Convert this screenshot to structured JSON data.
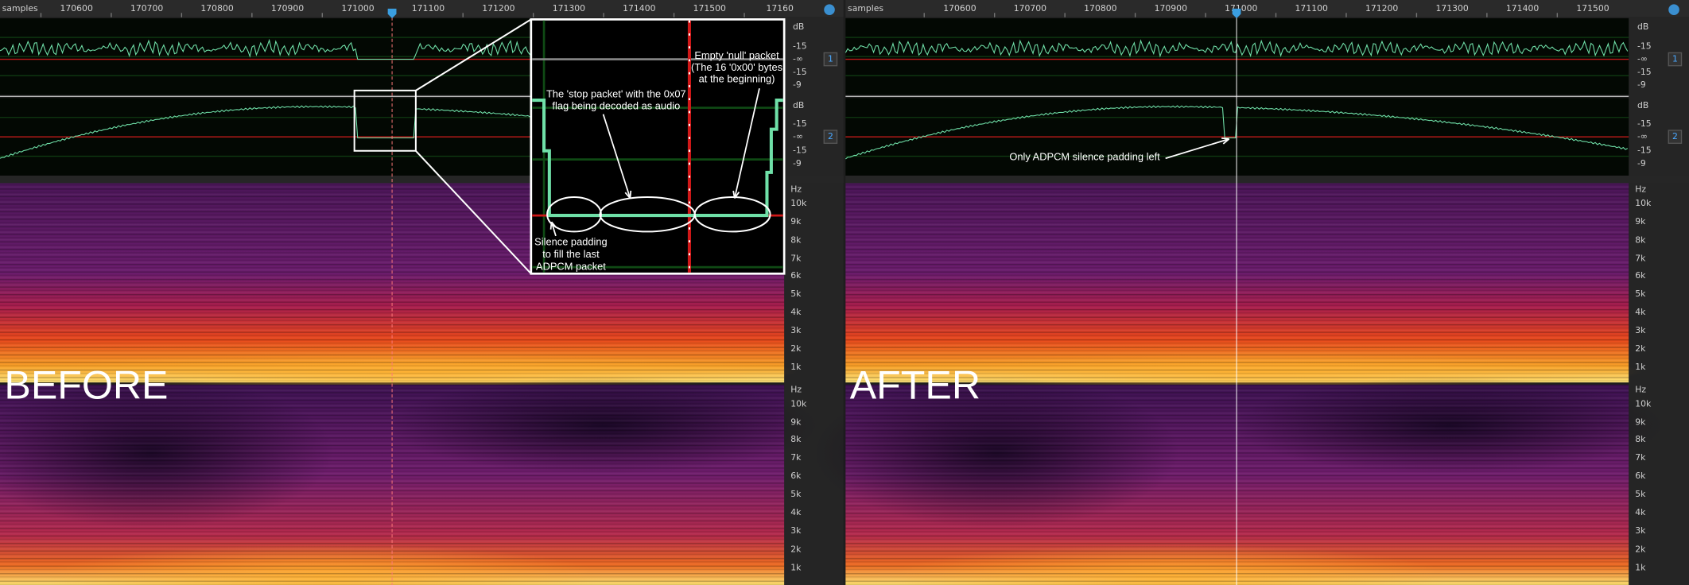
{
  "panels": [
    {
      "label": "BEFORE",
      "ruler": {
        "unit": "samples",
        "ticks": [
          "170600",
          "170700",
          "170800",
          "170900",
          "171000",
          "171100",
          "171200",
          "171300",
          "171400",
          "171500",
          "17160"
        ]
      },
      "tracks": [
        {
          "number": "1",
          "scale": [
            "dB",
            "-15",
            "-∞",
            "-15",
            "-9"
          ]
        },
        {
          "number": "2",
          "scale": [
            "dB",
            "-15",
            "-∞",
            "-15",
            "-9"
          ]
        }
      ],
      "spectrograms": [
        {
          "scale": [
            "Hz",
            "10k",
            "9k",
            "8k",
            "7k",
            "6k",
            "5k",
            "4k",
            "3k",
            "2k",
            "1k"
          ]
        },
        {
          "scale": [
            "Hz",
            "10k",
            "9k",
            "8k",
            "7k",
            "6k",
            "5k",
            "4k",
            "3k",
            "2k",
            "1k"
          ]
        }
      ]
    },
    {
      "label": "AFTER",
      "ruler": {
        "unit": "samples",
        "ticks": [
          "170600",
          "170700",
          "170800",
          "170900",
          "171000",
          "171100",
          "171200",
          "171300",
          "171400",
          "171500"
        ]
      },
      "tracks": [
        {
          "number": "1",
          "scale": [
            "dB",
            "-15",
            "-∞",
            "-15",
            "-9"
          ]
        },
        {
          "number": "2",
          "scale": [
            "dB",
            "-15",
            "-∞",
            "-15",
            "-9"
          ]
        }
      ],
      "spectrograms": [
        {
          "scale": [
            "Hz",
            "10k",
            "9k",
            "8k",
            "7k",
            "6k",
            "5k",
            "4k",
            "3k",
            "2k",
            "1k"
          ]
        },
        {
          "scale": [
            "Hz",
            "10k",
            "9k",
            "8k",
            "7k",
            "6k",
            "5k",
            "4k",
            "3k",
            "2k",
            "1k"
          ]
        }
      ]
    }
  ],
  "annotations": {
    "stop_packet": [
      "The 'stop packet' with the 0x07",
      "flag being decoded as audio"
    ],
    "null_packet": [
      "Empty 'null' packet",
      "(The 16 '0x00' bytes",
      "at the beginning)"
    ],
    "silence_padding": [
      "Silence padding",
      "to fill the last",
      "ADPCM packet"
    ],
    "after_note": "Only ADPCM silence padding left"
  }
}
